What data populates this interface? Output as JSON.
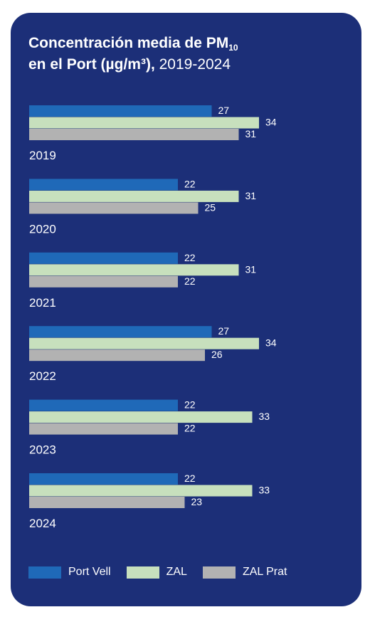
{
  "title": {
    "line1": "Concentración media de PM",
    "subscript": "10",
    "line2_bold": "en el Port (µg/m³),",
    "line2_years": " 2019-2024"
  },
  "colors": {
    "background": "#1c2f78",
    "Port Vell": "#1f69b8",
    "ZAL": "#c7e0bd",
    "ZAL Prat": "#b2b2b2",
    "text": "#ffffff"
  },
  "chart_data": {
    "type": "bar",
    "orientation": "horizontal",
    "categories": [
      "2019",
      "2020",
      "2021",
      "2022",
      "2023",
      "2024"
    ],
    "series": [
      {
        "name": "Port Vell",
        "values": [
          27,
          22,
          22,
          27,
          22,
          22
        ]
      },
      {
        "name": "ZAL",
        "values": [
          34,
          31,
          31,
          34,
          33,
          33
        ]
      },
      {
        "name": "ZAL Prat",
        "values": [
          31,
          25,
          22,
          26,
          22,
          23
        ]
      }
    ],
    "title": "Concentración media de PM10 en el Port (µg/m³), 2019-2024",
    "grid": false,
    "legend_position": "bottom"
  },
  "legend": [
    {
      "label": "Port Vell"
    },
    {
      "label": "ZAL"
    },
    {
      "label": "ZAL Prat"
    }
  ]
}
